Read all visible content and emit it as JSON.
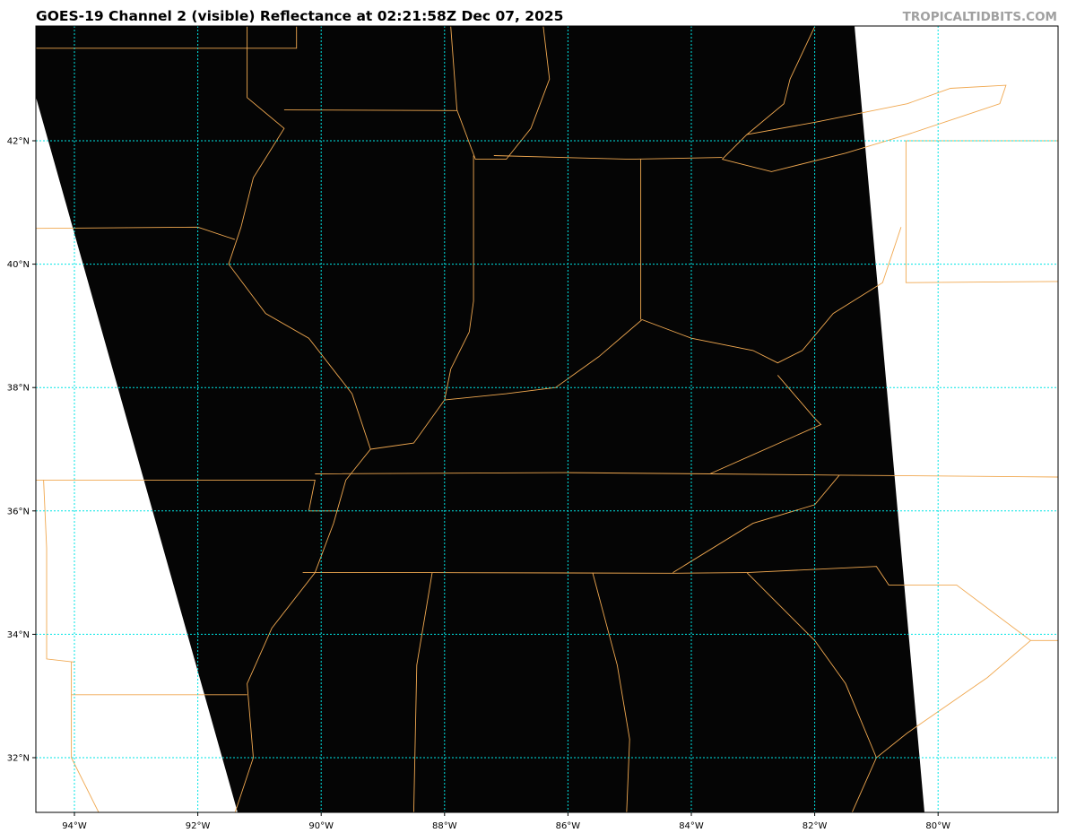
{
  "header": {
    "title": "GOES-19 Channel 2 (visible) Reflectance at 02:21:58Z Dec 07, 2025",
    "credit": "TROPICALTIDBITS.COM"
  },
  "map": {
    "projection": "plate carree",
    "lon_range": [
      -94.6,
      -78.05
    ],
    "lat_range": [
      31.1,
      43.85
    ],
    "lon_ticks": [
      {
        "value": -94,
        "label": "94°W"
      },
      {
        "value": -92,
        "label": "92°W"
      },
      {
        "value": -90,
        "label": "90°W"
      },
      {
        "value": -88,
        "label": "88°W"
      },
      {
        "value": -86,
        "label": "86°W"
      },
      {
        "value": -84,
        "label": "84°W"
      },
      {
        "value": -82,
        "label": "82°W"
      },
      {
        "value": -80,
        "label": "80°W"
      }
    ],
    "lat_ticks": [
      {
        "value": 42,
        "label": "42°N"
      },
      {
        "value": 40,
        "label": "40°N"
      },
      {
        "value": 38,
        "label": "38°N"
      },
      {
        "value": 36,
        "label": "36°N"
      },
      {
        "value": 34,
        "label": "34°N"
      },
      {
        "value": 32,
        "label": "32°N"
      }
    ],
    "colors": {
      "imagery": "#050505",
      "borders": "#f0a850",
      "gridlines": "#00e5e5",
      "background": "#ffffff"
    }
  }
}
